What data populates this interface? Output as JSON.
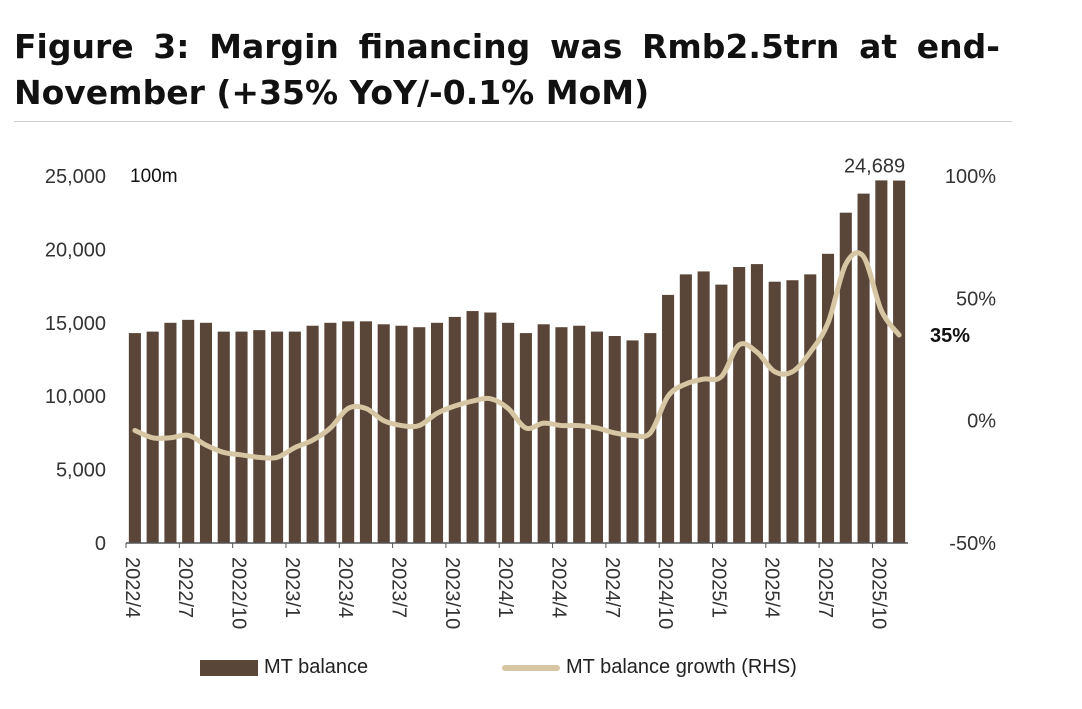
{
  "title": "Figure 3: Margin financing was Rmb2.5trn at end-November (+35% YoY/-0.1% MoM)",
  "colors": {
    "bar": "#5a4638",
    "line": "#d6c6a4",
    "axis": "#555555",
    "rule": "#cfcfcf"
  },
  "chart_data": {
    "type": "bar",
    "title": "Figure 3: Margin financing was Rmb2.5trn at end-November (+35% YoY/-0.1% MoM)",
    "unit_label": "100m",
    "left_axis": {
      "ylim": [
        0,
        25000
      ],
      "ticks": [
        0,
        5000,
        10000,
        15000,
        20000,
        25000
      ],
      "tick_labels": [
        "0",
        "5,000",
        "10,000",
        "15,000",
        "20,000",
        "25,000"
      ]
    },
    "right_axis": {
      "ylim": [
        -50,
        100
      ],
      "ticks": [
        -50,
        0,
        50,
        100
      ],
      "tick_labels": [
        "-50%",
        "0%",
        "50%",
        "100%"
      ]
    },
    "x_tick_labels": [
      "2022/4",
      "2022/7",
      "2022/10",
      "2023/1",
      "2023/4",
      "2023/7",
      "2023/10",
      "2024/1",
      "2024/4",
      "2024/7",
      "2024/10",
      "2025/1",
      "2025/4",
      "2025/7",
      "2025/10"
    ],
    "categories": [
      "2022/4",
      "2022/5",
      "2022/6",
      "2022/7",
      "2022/8",
      "2022/9",
      "2022/10",
      "2022/11",
      "2022/12",
      "2023/1",
      "2023/2",
      "2023/3",
      "2023/4",
      "2023/5",
      "2023/6",
      "2023/7",
      "2023/8",
      "2023/9",
      "2023/10",
      "2023/11",
      "2023/12",
      "2024/1",
      "2024/2",
      "2024/3",
      "2024/4",
      "2024/5",
      "2024/6",
      "2024/7",
      "2024/8",
      "2024/9",
      "2024/10",
      "2024/11",
      "2024/12",
      "2025/1",
      "2025/2",
      "2025/3",
      "2025/4",
      "2025/5",
      "2025/6",
      "2025/7",
      "2025/8",
      "2025/9",
      "2025/10",
      "2025/11"
    ],
    "series": [
      {
        "name": "MT balance",
        "type": "bar",
        "axis": "left",
        "values": [
          14300,
          14400,
          15000,
          15200,
          15000,
          14400,
          14400,
          14500,
          14400,
          14400,
          14800,
          15000,
          15100,
          15100,
          14900,
          14800,
          14700,
          15000,
          15400,
          15800,
          15700,
          15000,
          14300,
          14900,
          14700,
          14800,
          14400,
          14100,
          13800,
          14300,
          16900,
          18300,
          18500,
          17600,
          18800,
          19000,
          17800,
          17900,
          18300,
          19700,
          22500,
          23800,
          24700,
          24689
        ]
      },
      {
        "name": "MT balance growth (RHS)",
        "type": "line",
        "axis": "right",
        "values": [
          -4,
          -7,
          -7,
          -6,
          -10,
          -13,
          -14,
          -15,
          -15,
          -11,
          -8,
          -3,
          5,
          5,
          0,
          -2,
          -2,
          3,
          6,
          8,
          9,
          5,
          -3,
          -1,
          -2,
          -2,
          -3,
          -5,
          -6,
          -5,
          10,
          15,
          17,
          18,
          31,
          28,
          20,
          20,
          28,
          40,
          64,
          67,
          45,
          35
        ]
      }
    ],
    "annotations": {
      "last_bar_value": "24,689",
      "last_growth": "35%"
    },
    "legend": {
      "placement": "bottom",
      "items": [
        "MT balance",
        "MT balance growth (RHS)"
      ]
    }
  }
}
